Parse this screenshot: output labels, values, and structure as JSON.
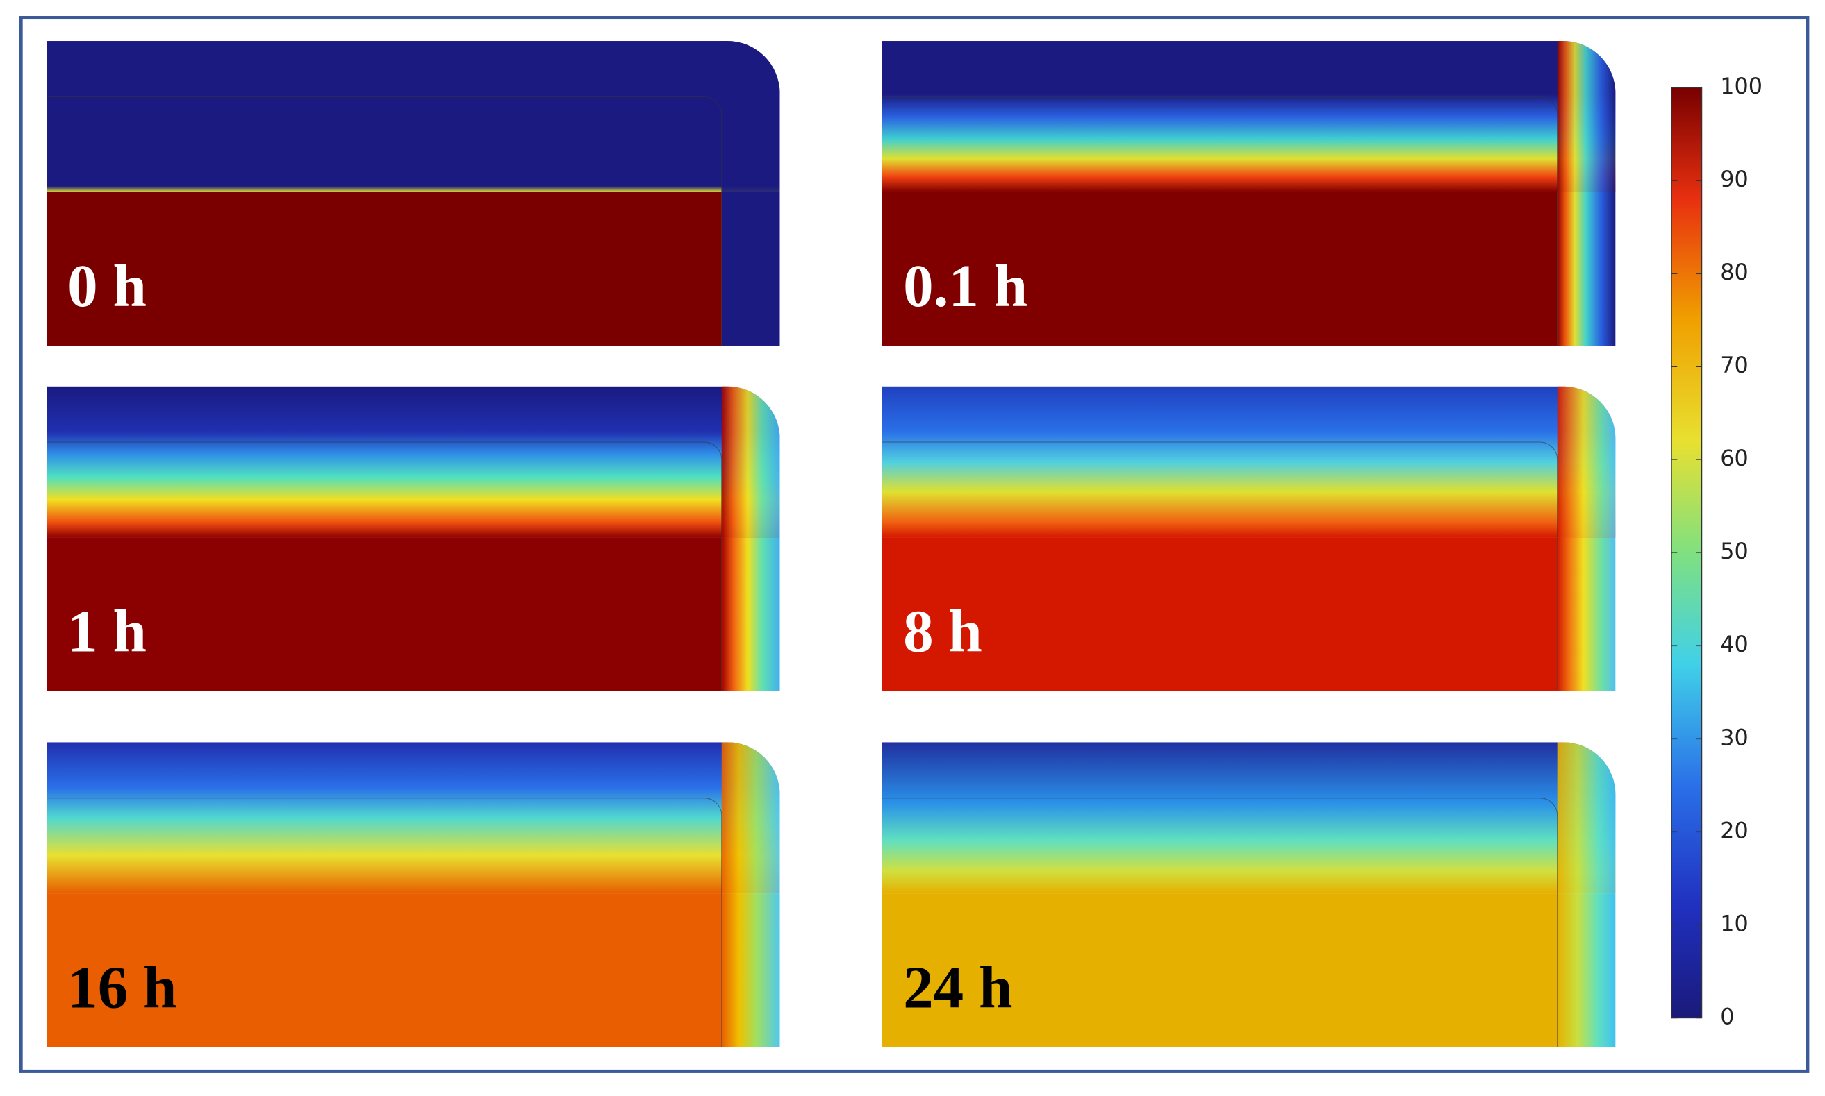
{
  "panels": [
    {
      "label": "0 h"
    },
    {
      "label": "0.1 h"
    },
    {
      "label": "1 h"
    },
    {
      "label": "8 h"
    },
    {
      "label": "16 h"
    },
    {
      "label": "24 h"
    }
  ],
  "colorbar": {
    "range": [
      0,
      100
    ],
    "ticks": [
      0,
      10,
      20,
      30,
      40,
      50,
      60,
      70,
      80,
      90,
      100
    ]
  }
}
